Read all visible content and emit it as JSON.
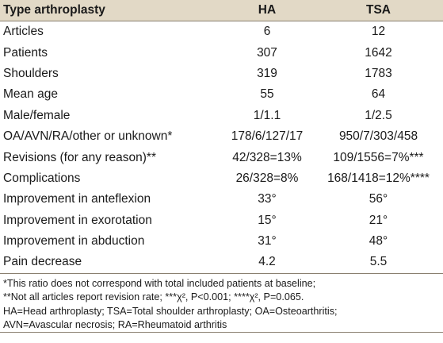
{
  "table": {
    "header": [
      "Type arthroplasty",
      "HA",
      "TSA"
    ],
    "rows": [
      [
        "Articles",
        "6",
        "12"
      ],
      [
        "Patients",
        "307",
        "1642"
      ],
      [
        "Shoulders",
        "319",
        "1783"
      ],
      [
        "Mean age",
        "55",
        "64"
      ],
      [
        "Male/female",
        "1/1.1",
        "1/2.5"
      ],
      [
        "OA/AVN/RA/other or unknown*",
        "178/6/127/17",
        "950/7/303/458"
      ],
      [
        "Revisions (for any reason)**",
        "42/328=13%",
        "109/1556=7%***"
      ],
      [
        "Complications",
        "26/328=8%",
        "168/1418=12%****"
      ],
      [
        "Improvement in anteflexion",
        "33°",
        "56°"
      ],
      [
        "Improvement in exorotation",
        "15°",
        "21°"
      ],
      [
        "Improvement in abduction",
        "31°",
        "48°"
      ],
      [
        "Pain decrease",
        "4.2",
        "5.5"
      ]
    ],
    "footnotes": [
      "*This ratio does not correspond with total included patients at baseline;",
      "**Not all articles report revision rate; ***χ², P<0.001; ****χ², P=0.065.",
      "HA=Head arthroplasty; TSA=Total shoulder arthroplasty; OA=Osteoarthritis;",
      "AVN=Avascular necrosis; RA=Rheumatoid arthritis"
    ]
  }
}
